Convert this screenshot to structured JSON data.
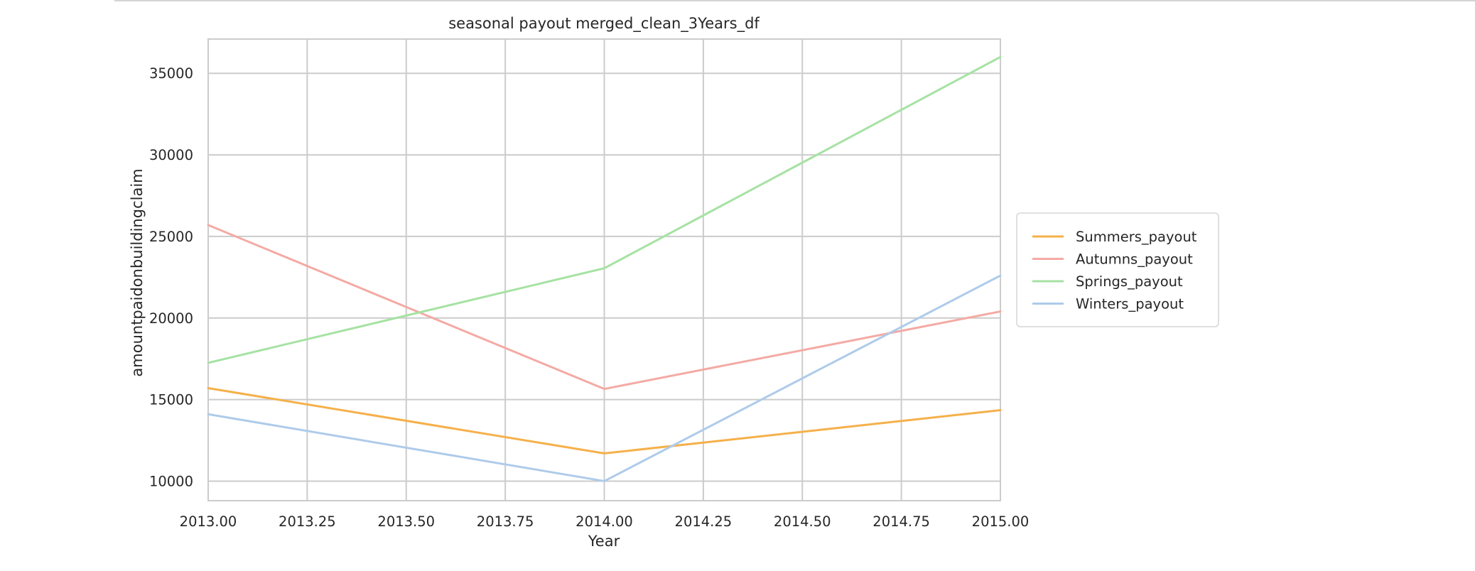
{
  "chart_data": {
    "type": "line",
    "title": "seasonal payout merged_clean_3Years_df",
    "xlabel": "Year",
    "ylabel": "amountpaidonbuildingclaim",
    "x": [
      2013,
      2014,
      2015
    ],
    "xlim": [
      2013.0,
      2015.0
    ],
    "ylim": [
      8800,
      37100
    ],
    "xticks": [
      2013.0,
      2013.25,
      2013.5,
      2013.75,
      2014.0,
      2014.25,
      2014.5,
      2014.75,
      2015.0
    ],
    "xtick_labels": [
      "2013.00",
      "2013.25",
      "2013.50",
      "2013.75",
      "2014.00",
      "2014.25",
      "2014.50",
      "2014.75",
      "2015.00"
    ],
    "yticks": [
      10000,
      15000,
      20000,
      25000,
      30000,
      35000
    ],
    "ytick_labels": [
      "10000",
      "15000",
      "20000",
      "25000",
      "30000",
      "35000"
    ],
    "grid": true,
    "legend_placement": "center-right-outside",
    "series": [
      {
        "name": "Summers_payout",
        "color": "#f5b04a",
        "values": [
          15700,
          11700,
          14350
        ]
      },
      {
        "name": "Autumns_payout",
        "color": "#f4aaa4",
        "values": [
          25700,
          15650,
          20400
        ]
      },
      {
        "name": "Springs_payout",
        "color": "#a6e2a3",
        "values": [
          17250,
          23050,
          36000
        ]
      },
      {
        "name": "Winters_payout",
        "color": "#aecbea",
        "values": [
          14100,
          10000,
          22600
        ]
      }
    ]
  }
}
